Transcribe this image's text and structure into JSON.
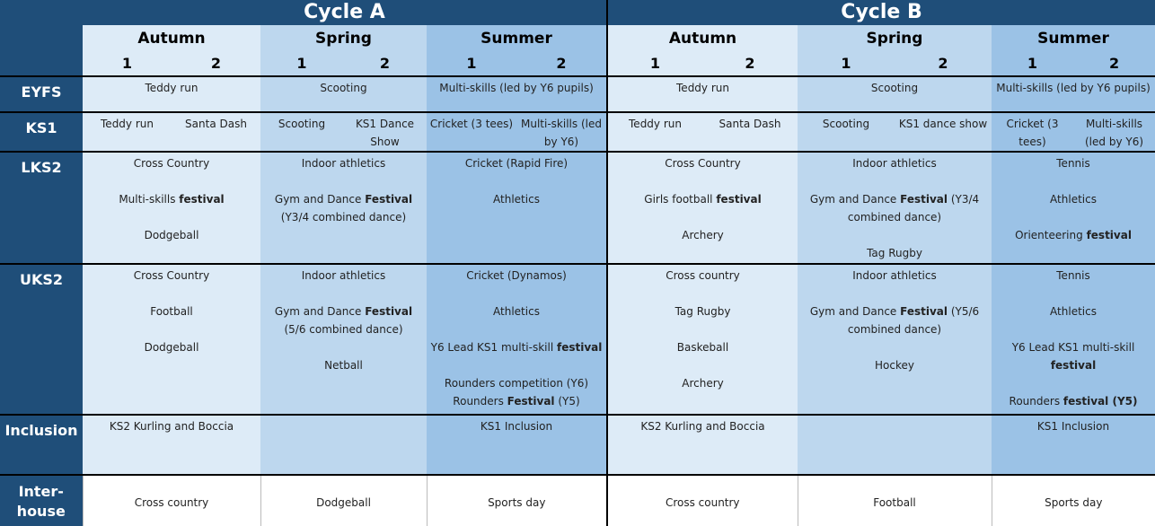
{
  "header": {
    "cycles": [
      {
        "title": "Cycle A",
        "seasons": [
          {
            "name": "Autumn",
            "halves": [
              "1",
              "2"
            ]
          },
          {
            "name": "Spring",
            "halves": [
              "1",
              "2"
            ]
          },
          {
            "name": "Summer",
            "halves": [
              "1",
              "2"
            ]
          }
        ]
      },
      {
        "title": "Cycle B",
        "seasons": [
          {
            "name": "Autumn",
            "halves": [
              "1",
              "2"
            ]
          },
          {
            "name": "Spring",
            "halves": [
              "1",
              "2"
            ]
          },
          {
            "name": "Summer",
            "halves": [
              "1",
              "2"
            ]
          }
        ]
      }
    ]
  },
  "rows": [
    {
      "label": "EYFS",
      "cells": [
        [
          [
            "Teddy run"
          ]
        ],
        [
          [
            "Scooting"
          ]
        ],
        [
          [
            "Multi-skills (led by Y6 pupils)"
          ]
        ],
        [
          [
            "Teddy run"
          ]
        ],
        [
          [
            "Scooting"
          ]
        ],
        [
          [
            "Multi-skills (led by Y6 pupils)"
          ]
        ]
      ]
    },
    {
      "label": "KS1",
      "cells": [
        [
          [
            "Teddy run"
          ]
        ],
        [
          [
            "Santa Dash"
          ]
        ],
        [
          [
            "Scooting"
          ]
        ],
        [
          [
            "KS1 Dance Show"
          ]
        ],
        [
          [
            "Cricket (3 tees)"
          ]
        ],
        [
          [
            "Multi-skills (led by Y6)"
          ]
        ],
        [
          [
            "Teddy run"
          ]
        ],
        [
          [
            "Santa Dash"
          ]
        ],
        [
          [
            "Scooting"
          ]
        ],
        [
          [
            "KS1 dance show"
          ]
        ],
        [
          [
            "Cricket (3 tees)"
          ]
        ],
        [
          [
            "Multi-skills (led by Y6)"
          ]
        ]
      ]
    },
    {
      "label": "LKS2",
      "cells": [
        [
          [
            "Cross Country"
          ],
          [
            "Multi-skills",
            {
              "bold": "festival"
            }
          ],
          [
            "Dodgeball"
          ]
        ],
        [
          [
            "Indoor athletics"
          ],
          [
            "Gym and Dance",
            {
              "bold": "Festival"
            },
            "(Y3/4 combined dance)"
          ]
        ],
        [
          [
            "Cricket (Rapid Fire)"
          ],
          [
            "Athletics"
          ]
        ],
        [
          [
            "Cross Country"
          ],
          [
            "Girls football",
            {
              "bold": "festival"
            }
          ],
          [
            "Archery"
          ]
        ],
        [
          [
            "Indoor athletics"
          ],
          [
            "Gym and Dance",
            {
              "bold": "Festival"
            },
            "(Y3/4 combined dance)"
          ],
          [
            "Tag Rugby"
          ]
        ],
        [
          [
            "Tennis"
          ],
          [
            "Athletics"
          ],
          [
            "Orienteering",
            {
              "bold": "festival"
            }
          ]
        ]
      ]
    },
    {
      "label": "UKS2",
      "cells": [
        [
          [
            "Cross Country"
          ],
          [
            "Football"
          ],
          [
            "Dodgeball"
          ]
        ],
        [
          [
            "Indoor athletics"
          ],
          [
            "Gym and Dance",
            {
              "bold": "Festival"
            },
            "(5/6 combined dance)"
          ],
          [
            "Netball"
          ]
        ],
        [
          [
            "Cricket (Dynamos)"
          ],
          [
            "Athletics"
          ],
          [
            "Y6 Lead KS1 multi-skill",
            {
              "bold": "festival"
            }
          ],
          [
            "Rounders competition (Y6)",
            "Rounders",
            {
              "bold": "Festival"
            },
            "(Y5)"
          ]
        ],
        [
          [
            "Cross country"
          ],
          [
            "Tag Rugby"
          ],
          [
            "Baskeball"
          ],
          [
            "Archery"
          ]
        ],
        [
          [
            "Indoor athletics"
          ],
          [
            "Gym and Dance",
            {
              "bold": "Festival"
            },
            "(Y5/6 combined dance)"
          ],
          [
            "Hockey"
          ]
        ],
        [
          [
            "Tennis"
          ],
          [
            "Athletics"
          ],
          [
            "Y6 Lead KS1 multi-skill",
            {
              "bold": "festival"
            }
          ],
          [
            "Rounders",
            {
              "bold": "festival (Y5)"
            }
          ]
        ]
      ]
    },
    {
      "label": "Inclusion",
      "cells": [
        [
          [
            "KS2 Kurling and Boccia"
          ]
        ],
        [],
        [
          [
            "KS1 Inclusion"
          ]
        ],
        [
          [
            "KS2 Kurling and Boccia"
          ]
        ],
        [],
        [
          [
            "KS1 Inclusion"
          ]
        ]
      ]
    },
    {
      "label": "Inter-house",
      "cells": [
        [
          [
            "Cross country"
          ]
        ],
        [
          [
            "Dodgeball"
          ]
        ],
        [
          [
            "Sports day"
          ]
        ],
        [
          [
            "Cross country"
          ]
        ],
        [
          [
            "Football"
          ]
        ],
        [
          [
            "Sports day"
          ]
        ]
      ]
    }
  ]
}
